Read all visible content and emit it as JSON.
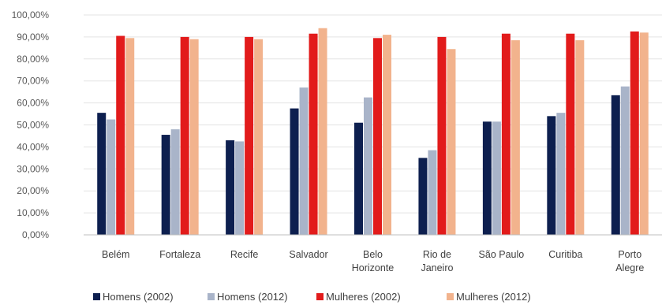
{
  "chart_data": {
    "type": "bar",
    "categories": [
      [
        "Belém"
      ],
      [
        "Fortaleza"
      ],
      [
        "Recife"
      ],
      [
        "Salvador"
      ],
      [
        "Belo",
        "Horizonte"
      ],
      [
        "Rio de",
        "Janeiro"
      ],
      [
        "São Paulo"
      ],
      [
        "Curitiba"
      ],
      [
        "Porto",
        "Alegre"
      ]
    ],
    "series": [
      {
        "name": "Homens (2002)",
        "color": "#0d1f4f",
        "values": [
          55.5,
          45.5,
          43.0,
          57.5,
          51.0,
          35.0,
          51.5,
          54.0,
          63.5
        ]
      },
      {
        "name": "Homens (2012)",
        "color": "#a9b4c9",
        "values": [
          52.5,
          48.0,
          42.5,
          67.0,
          62.5,
          38.5,
          51.5,
          55.5,
          67.5
        ]
      },
      {
        "name": "Mulheres (2002)",
        "color": "#e21b1b",
        "values": [
          90.5,
          90.0,
          90.0,
          91.5,
          89.5,
          90.0,
          91.5,
          91.5,
          92.5
        ]
      },
      {
        "name": "Mulheres (2012)",
        "color": "#f2b38d",
        "values": [
          89.5,
          89.0,
          89.0,
          94.0,
          91.0,
          84.5,
          88.5,
          88.5,
          92.0
        ]
      }
    ],
    "yticks": [
      "0,00%",
      "10,00%",
      "20,00%",
      "30,00%",
      "40,00%",
      "50,00%",
      "60,00%",
      "70,00%",
      "80,00%",
      "90,00%",
      "100,00%"
    ],
    "ylim": [
      0,
      100
    ],
    "grid": true,
    "legend_position": "bottom"
  }
}
